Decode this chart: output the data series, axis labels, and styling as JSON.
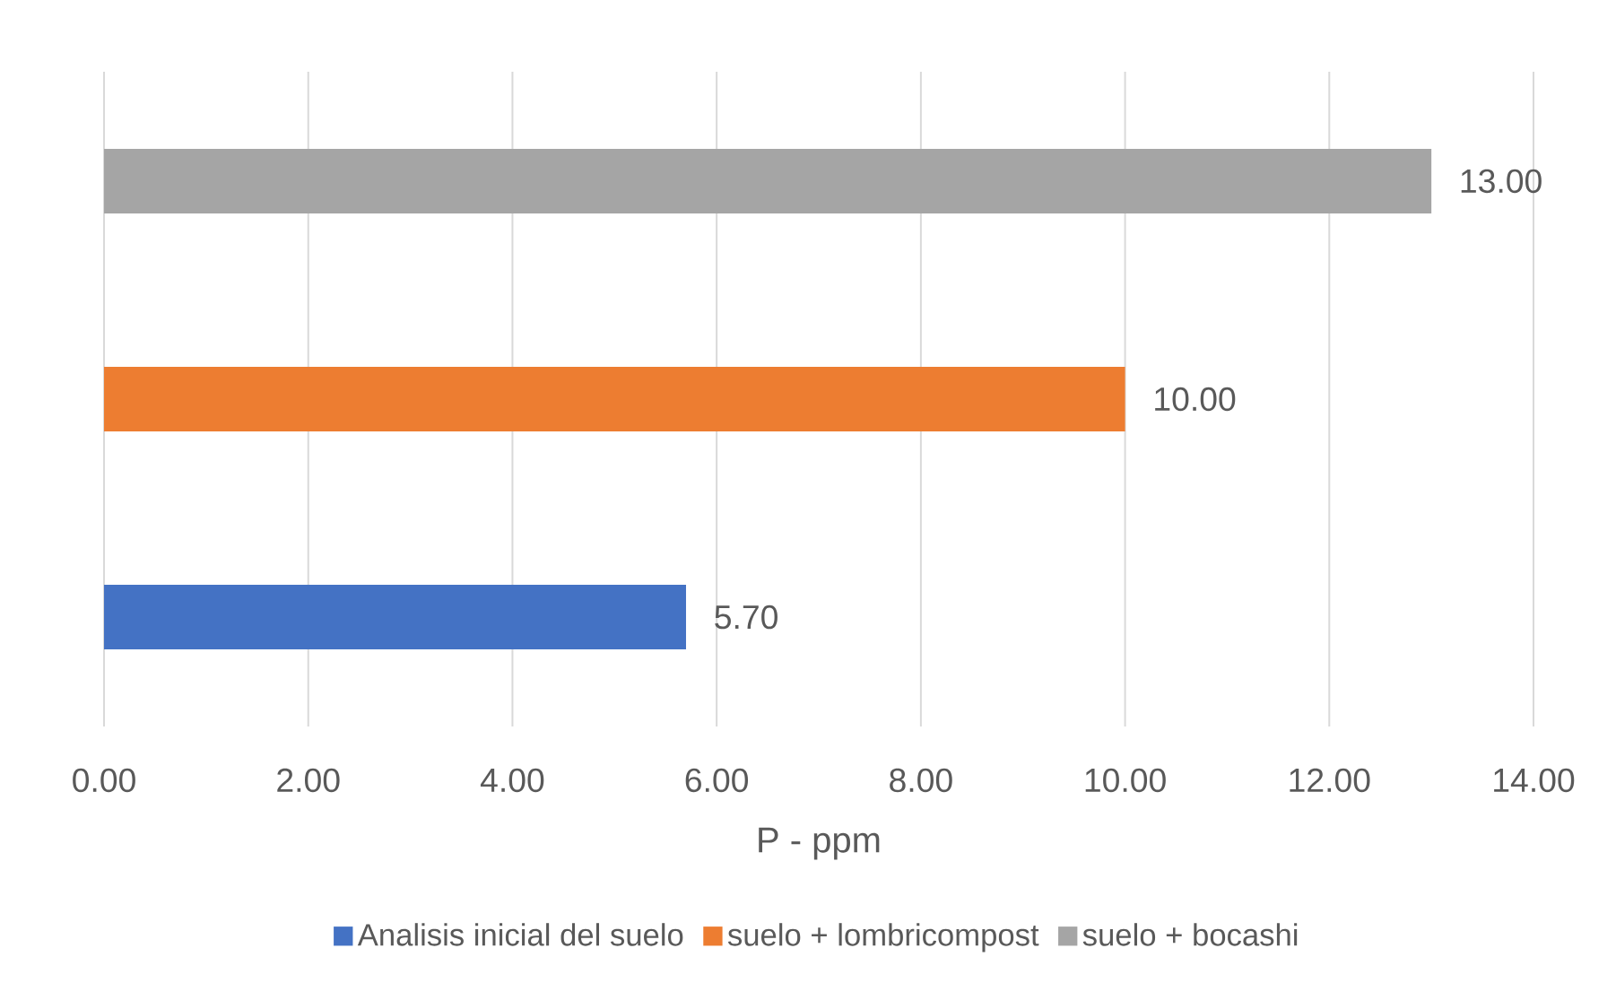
{
  "chart_data": {
    "type": "bar",
    "orientation": "horizontal",
    "xlabel": "P - ppm",
    "categories": [
      null
    ],
    "series": [
      {
        "name": "Analisis inicial del suelo",
        "color": "#4472c4",
        "values": [
          5.7
        ],
        "value_labels": [
          "5.70"
        ]
      },
      {
        "name": "suelo + lombricompost",
        "color": "#ed7d31",
        "values": [
          10.0
        ],
        "value_labels": [
          "10.00"
        ]
      },
      {
        "name": "suelo + bocashi",
        "color": "#a5a5a5",
        "values": [
          13.0
        ],
        "value_labels": [
          "13.00"
        ]
      }
    ],
    "xlim": [
      0,
      14
    ],
    "xticks": [
      {
        "value": 0,
        "label": "0.00"
      },
      {
        "value": 2,
        "label": "2.00"
      },
      {
        "value": 4,
        "label": "4.00"
      },
      {
        "value": 6,
        "label": "6.00"
      },
      {
        "value": 8,
        "label": "8.00"
      },
      {
        "value": 10,
        "label": "10.00"
      },
      {
        "value": 12,
        "label": "12.00"
      },
      {
        "value": 14,
        "label": "14.00"
      }
    ],
    "grid": "x",
    "legend": "bottom"
  }
}
